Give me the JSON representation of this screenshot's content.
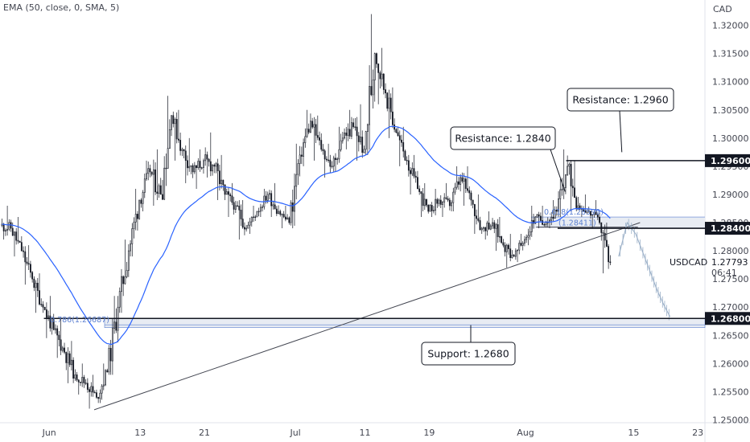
{
  "indicator_label": "EMA (50, close, 0, SMA, 5)",
  "colors": {
    "ema": "#2962ff",
    "candle": "#131722",
    "forecast": "#9bb0c8",
    "zone": "#e8ecf3",
    "fib": "#5b7fd0"
  },
  "chart_data": {
    "type": "candlestick",
    "currency": "CAD",
    "ylim": [
      1.2495,
      1.3245
    ],
    "y_ticks": [
      "1.32000",
      "1.31500",
      "1.31000",
      "1.30500",
      "1.30000",
      "1.29500",
      "1.29000",
      "1.28500",
      "1.28000",
      "1.27500",
      "1.27000",
      "1.26500",
      "1.26000",
      "1.25500",
      "1.25000"
    ],
    "x_ticks": [
      "Jun",
      "13",
      "21",
      "Jul",
      "11",
      "19",
      "Aug",
      "15",
      "23"
    ],
    "price_levels": [
      {
        "label": "1.29600",
        "value": 1.296
      },
      {
        "label": "1.28400",
        "value": 1.284
      },
      {
        "label": "1.26800",
        "value": 1.268
      }
    ],
    "symbol": "USDCAD",
    "last_price": "1.27793",
    "countdown": "06:41",
    "callouts": [
      {
        "text": "Resistance: 1.2960",
        "level": 1.296
      },
      {
        "text": "Resistance: 1.2840",
        "level": 1.284
      },
      {
        "text": "Support: 1.2680",
        "level": 1.268
      }
    ],
    "fib_labels": [
      {
        "text": "0.786(1.26687)",
        "value": 1.26687
      },
      {
        "text": "0.618(1.28599)",
        "value": 1.28599
      },
      {
        "text": "(1.28411)",
        "value": 1.28411
      }
    ],
    "ema_period": 50,
    "daily_anchors": [
      {
        "d": 0,
        "o": 1.2845,
        "h": 1.288,
        "l": 1.282,
        "c": 1.284
      },
      {
        "d": 1,
        "o": 1.284,
        "h": 1.286,
        "l": 1.279,
        "c": 1.28
      },
      {
        "d": 2,
        "o": 1.28,
        "h": 1.281,
        "l": 1.274,
        "c": 1.275
      },
      {
        "d": 3,
        "o": 1.275,
        "h": 1.276,
        "l": 1.269,
        "c": 1.27
      },
      {
        "d": 4,
        "o": 1.27,
        "h": 1.272,
        "l": 1.2645,
        "c": 1.266
      },
      {
        "d": 5,
        "o": 1.266,
        "h": 1.268,
        "l": 1.261,
        "c": 1.262
      },
      {
        "d": 6,
        "o": 1.262,
        "h": 1.264,
        "l": 1.2565,
        "c": 1.258
      },
      {
        "d": 7,
        "o": 1.258,
        "h": 1.26,
        "l": 1.2545,
        "c": 1.2565
      },
      {
        "d": 8,
        "o": 1.2565,
        "h": 1.258,
        "l": 1.252,
        "c": 1.254
      },
      {
        "d": 9,
        "o": 1.254,
        "h": 1.26,
        "l": 1.253,
        "c": 1.2585
      },
      {
        "d": 10,
        "o": 1.2585,
        "h": 1.272,
        "l": 1.258,
        "c": 1.27
      },
      {
        "d": 11,
        "o": 1.27,
        "h": 1.282,
        "l": 1.269,
        "c": 1.28
      },
      {
        "d": 12,
        "o": 1.28,
        "h": 1.291,
        "l": 1.279,
        "c": 1.289
      },
      {
        "d": 13,
        "o": 1.289,
        "h": 1.296,
        "l": 1.287,
        "c": 1.294
      },
      {
        "d": 14,
        "o": 1.294,
        "h": 1.298,
        "l": 1.288,
        "c": 1.29
      },
      {
        "d": 15,
        "o": 1.29,
        "h": 1.3075,
        "l": 1.289,
        "c": 1.304
      },
      {
        "d": 16,
        "o": 1.304,
        "h": 1.305,
        "l": 1.296,
        "c": 1.298
      },
      {
        "d": 17,
        "o": 1.298,
        "h": 1.3,
        "l": 1.292,
        "c": 1.294
      },
      {
        "d": 18,
        "o": 1.294,
        "h": 1.298,
        "l": 1.291,
        "c": 1.296
      },
      {
        "d": 19,
        "o": 1.296,
        "h": 1.301,
        "l": 1.293,
        "c": 1.295
      },
      {
        "d": 20,
        "o": 1.295,
        "h": 1.297,
        "l": 1.289,
        "c": 1.29
      },
      {
        "d": 21,
        "o": 1.29,
        "h": 1.292,
        "l": 1.286,
        "c": 1.288
      },
      {
        "d": 22,
        "o": 1.288,
        "h": 1.289,
        "l": 1.282,
        "c": 1.284
      },
      {
        "d": 23,
        "o": 1.284,
        "h": 1.288,
        "l": 1.283,
        "c": 1.287
      },
      {
        "d": 24,
        "o": 1.287,
        "h": 1.291,
        "l": 1.286,
        "c": 1.29
      },
      {
        "d": 25,
        "o": 1.29,
        "h": 1.292,
        "l": 1.286,
        "c": 1.287
      },
      {
        "d": 26,
        "o": 1.287,
        "h": 1.288,
        "l": 1.284,
        "c": 1.285
      },
      {
        "d": 27,
        "o": 1.285,
        "h": 1.299,
        "l": 1.284,
        "c": 1.297
      },
      {
        "d": 28,
        "o": 1.297,
        "h": 1.305,
        "l": 1.295,
        "c": 1.303
      },
      {
        "d": 29,
        "o": 1.303,
        "h": 1.304,
        "l": 1.296,
        "c": 1.298
      },
      {
        "d": 30,
        "o": 1.298,
        "h": 1.299,
        "l": 1.293,
        "c": 1.295
      },
      {
        "d": 31,
        "o": 1.295,
        "h": 1.302,
        "l": 1.294,
        "c": 1.3
      },
      {
        "d": 32,
        "o": 1.3,
        "h": 1.305,
        "l": 1.298,
        "c": 1.302
      },
      {
        "d": 33,
        "o": 1.302,
        "h": 1.306,
        "l": 1.296,
        "c": 1.298
      },
      {
        "d": 34,
        "o": 1.298,
        "h": 1.322,
        "l": 1.297,
        "c": 1.315
      },
      {
        "d": 35,
        "o": 1.315,
        "h": 1.316,
        "l": 1.306,
        "c": 1.308
      },
      {
        "d": 36,
        "o": 1.308,
        "h": 1.309,
        "l": 1.3,
        "c": 1.301
      },
      {
        "d": 37,
        "o": 1.301,
        "h": 1.302,
        "l": 1.295,
        "c": 1.296
      },
      {
        "d": 38,
        "o": 1.296,
        "h": 1.297,
        "l": 1.29,
        "c": 1.291
      },
      {
        "d": 39,
        "o": 1.291,
        "h": 1.292,
        "l": 1.286,
        "c": 1.287
      },
      {
        "d": 40,
        "o": 1.287,
        "h": 1.291,
        "l": 1.286,
        "c": 1.289
      },
      {
        "d": 41,
        "o": 1.289,
        "h": 1.292,
        "l": 1.286,
        "c": 1.288
      },
      {
        "d": 42,
        "o": 1.288,
        "h": 1.295,
        "l": 1.287,
        "c": 1.293
      },
      {
        "d": 43,
        "o": 1.293,
        "h": 1.295,
        "l": 1.288,
        "c": 1.289
      },
      {
        "d": 44,
        "o": 1.289,
        "h": 1.29,
        "l": 1.283,
        "c": 1.284
      },
      {
        "d": 45,
        "o": 1.284,
        "h": 1.287,
        "l": 1.282,
        "c": 1.285
      },
      {
        "d": 46,
        "o": 1.285,
        "h": 1.286,
        "l": 1.28,
        "c": 1.281
      },
      {
        "d": 47,
        "o": 1.281,
        "h": 1.283,
        "l": 1.277,
        "c": 1.279
      },
      {
        "d": 48,
        "o": 1.279,
        "h": 1.283,
        "l": 1.278,
        "c": 1.282
      },
      {
        "d": 49,
        "o": 1.282,
        "h": 1.288,
        "l": 1.281,
        "c": 1.286
      },
      {
        "d": 50,
        "o": 1.286,
        "h": 1.288,
        "l": 1.284,
        "c": 1.285
      },
      {
        "d": 51,
        "o": 1.285,
        "h": 1.289,
        "l": 1.284,
        "c": 1.287
      },
      {
        "d": 52,
        "o": 1.287,
        "h": 1.298,
        "l": 1.286,
        "c": 1.295
      },
      {
        "d": 53,
        "o": 1.295,
        "h": 1.296,
        "l": 1.287,
        "c": 1.288
      },
      {
        "d": 54,
        "o": 1.288,
        "h": 1.29,
        "l": 1.286,
        "c": 1.287
      },
      {
        "d": 55,
        "o": 1.287,
        "h": 1.289,
        "l": 1.284,
        "c": 1.285
      },
      {
        "d": 56,
        "o": 1.285,
        "h": 1.285,
        "l": 1.276,
        "c": 1.2779
      }
    ],
    "forecast_path": [
      {
        "d": 57.2,
        "v": 1.279
      },
      {
        "d": 58.0,
        "v": 1.285
      },
      {
        "d": 58.8,
        "v": 1.283
      },
      {
        "d": 59.6,
        "v": 1.279
      },
      {
        "d": 60.2,
        "v": 1.276
      },
      {
        "d": 60.8,
        "v": 1.273
      },
      {
        "d": 61.4,
        "v": 1.2705
      },
      {
        "d": 62.0,
        "v": 1.2683
      }
    ]
  }
}
